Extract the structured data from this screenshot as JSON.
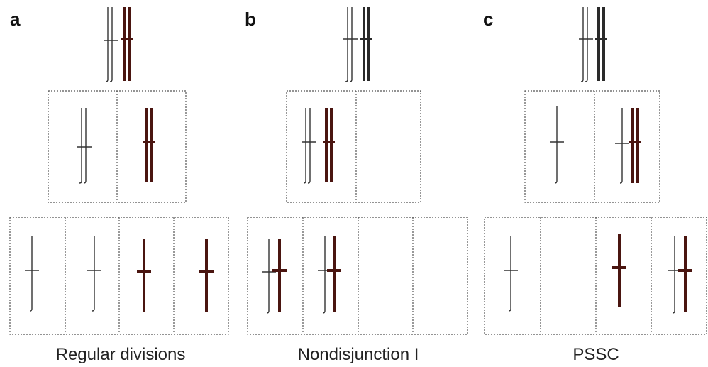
{
  "panels": [
    {
      "label": "a",
      "caption": "Regular divisions"
    },
    {
      "label": "b",
      "caption": "Nondisjunction I"
    },
    {
      "label": "c",
      "caption": "PSSC"
    }
  ]
}
